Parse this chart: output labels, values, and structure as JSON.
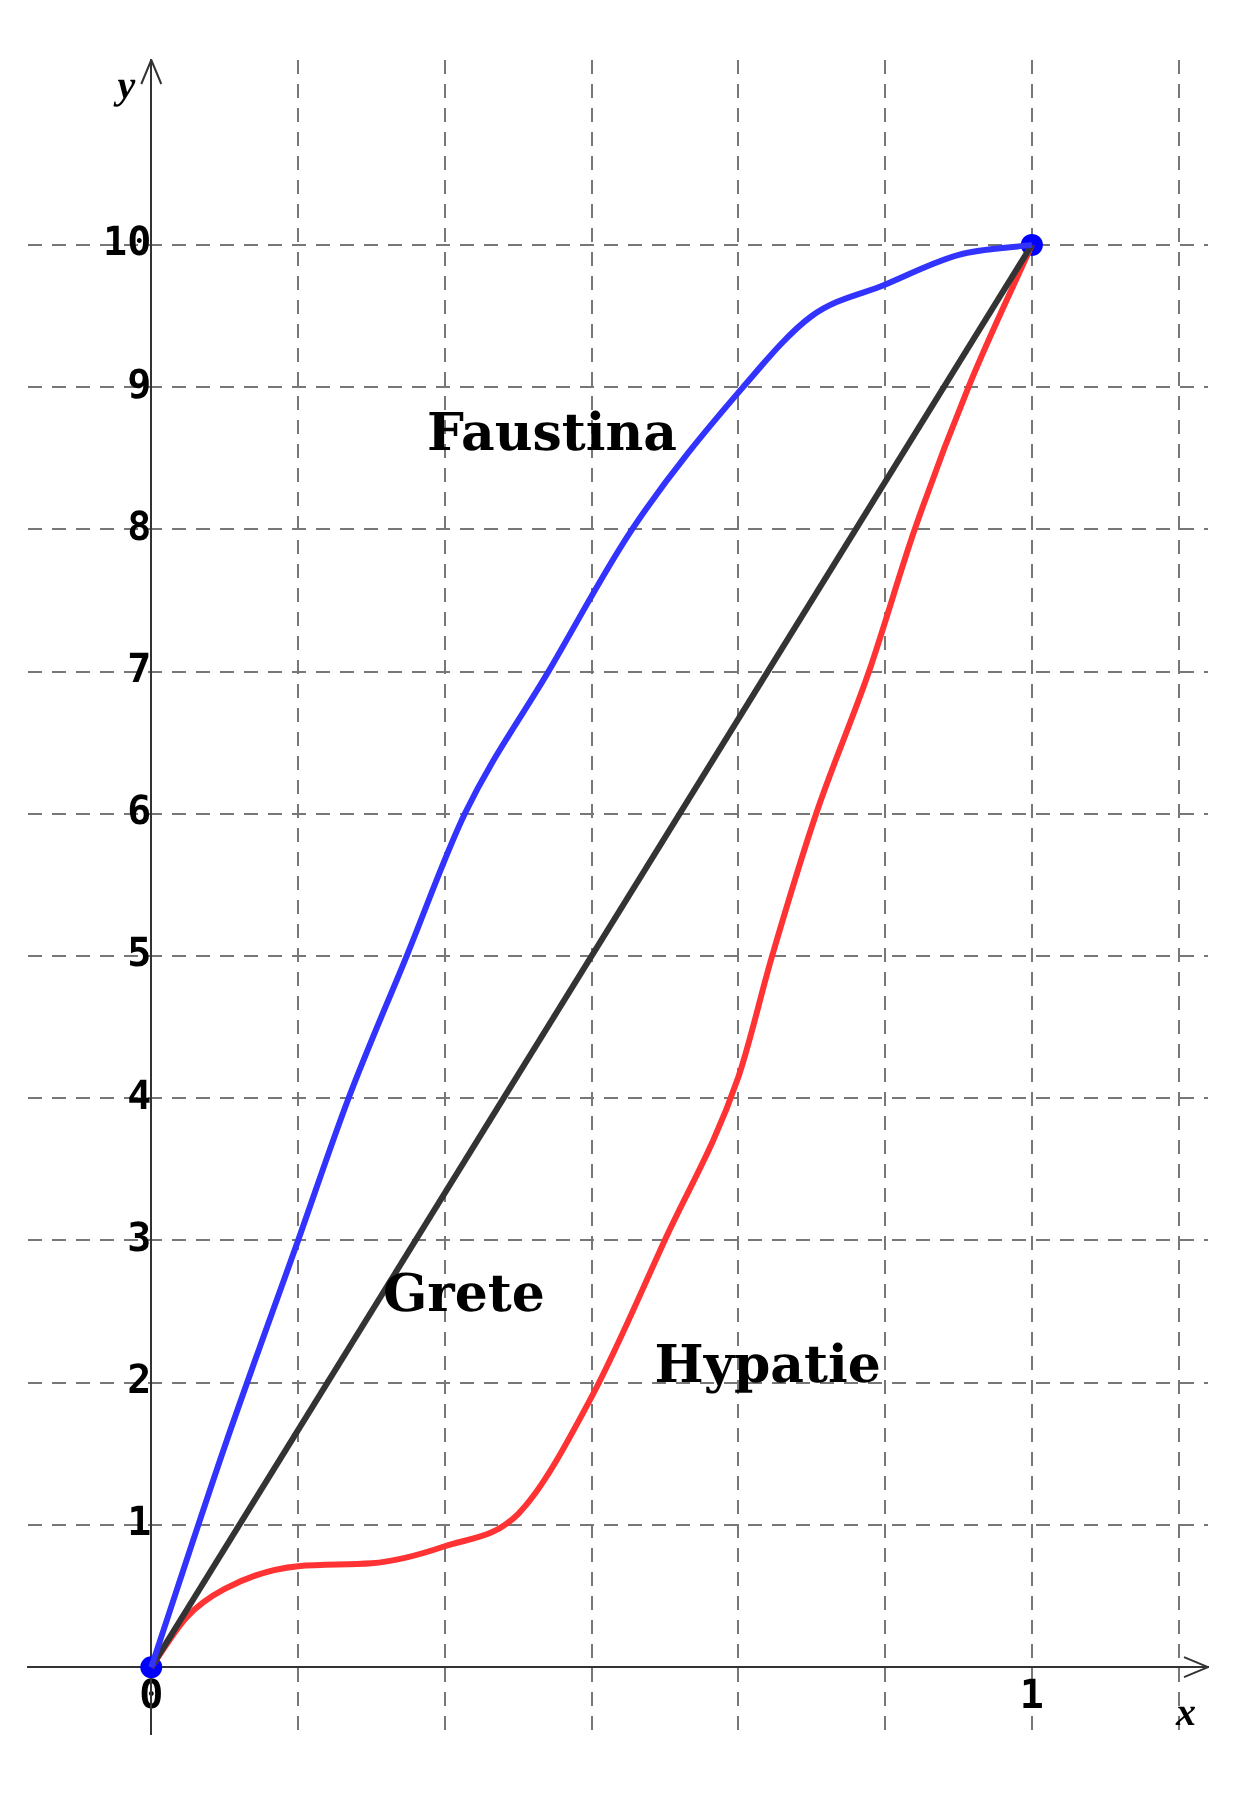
{
  "chart_data": {
    "type": "line",
    "xlabel": "x",
    "ylabel": "y",
    "xlim": [
      -0.14,
      1.2
    ],
    "ylim": [
      -0.47,
      11.3
    ],
    "xticks": [
      0,
      {
        "value": 0.1667,
        "label": null
      },
      {
        "value": 0.3333,
        "label": null
      },
      {
        "value": 0.5,
        "label": null
      },
      {
        "value": 0.6667,
        "label": null
      },
      {
        "value": 0.8333,
        "label": null
      },
      1,
      {
        "value": 1.1667,
        "label": null
      }
    ],
    "yticks": [
      {
        "value": 0,
        "label": null
      },
      1,
      2,
      3,
      4,
      5,
      6,
      7,
      8,
      9,
      10
    ],
    "grid": true,
    "legend": false,
    "marker": "none",
    "series": [
      {
        "name": "Faustina",
        "color": "#3333ff",
        "x": [
          0,
          0.0833,
          0.1667,
          0.224,
          0.29,
          0.356,
          0.451,
          0.546,
          0.672,
          0.75,
          0.833,
          0.917,
          1
        ],
        "values": [
          0,
          1.55,
          3,
          4,
          5,
          6,
          7,
          8,
          9,
          9.5,
          9.72,
          9.93,
          10
        ]
      },
      {
        "name": "Grete",
        "color": "#333333",
        "x": [
          0,
          1
        ],
        "values": [
          0,
          10
        ]
      },
      {
        "name": "Hypatie",
        "color": "#ff3333",
        "x": [
          0,
          0.04,
          0.0833,
          0.1667,
          0.25,
          0.3333,
          0.417,
          0.5,
          0.583,
          0.6667,
          0.705,
          0.755,
          0.815,
          0.867,
          0.928,
          1
        ],
        "values": [
          0,
          0.35,
          0.55,
          0.71,
          0.73,
          0.85,
          1.08,
          1.9,
          3,
          4.15,
          5,
          6,
          7,
          8,
          9,
          10
        ]
      },
      {
        "type": "scatter",
        "color": "#0000ff",
        "marker": "circle",
        "x": [
          0,
          1
        ],
        "values": [
          0,
          10
        ]
      }
    ]
  }
}
